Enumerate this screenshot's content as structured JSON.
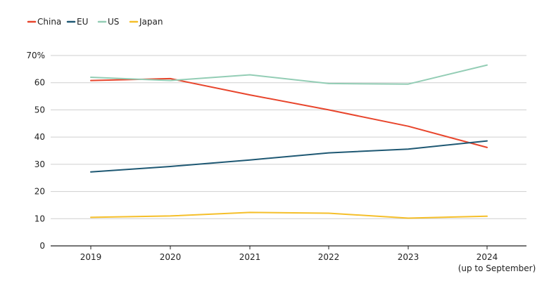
{
  "chart_data": {
    "type": "line",
    "title": "",
    "xlabel": "",
    "ylabel": "",
    "x_labels": [
      "2019",
      "2020",
      "2021",
      "2022",
      "2023",
      "2024"
    ],
    "x_sublabels": [
      "",
      "",
      "",
      "",
      "",
      "(up to September)"
    ],
    "y_ticks": [
      "0",
      "10",
      "20",
      "30",
      "40",
      "50",
      "60",
      "70%"
    ],
    "ylim": [
      0,
      70
    ],
    "grid": true,
    "legend_position": "top-left",
    "series": [
      {
        "name": "China",
        "color": "#e8452c",
        "values": [
          60.8,
          61.5,
          55.5,
          50.0,
          44.0,
          36.2
        ]
      },
      {
        "name": "EU",
        "color": "#1e5873",
        "values": [
          27.2,
          29.2,
          31.6,
          34.2,
          35.6,
          38.6
        ]
      },
      {
        "name": "US",
        "color": "#93cdb5",
        "values": [
          62.0,
          60.8,
          62.9,
          59.7,
          59.5,
          66.5
        ]
      },
      {
        "name": "Japan",
        "color": "#f5bf2a",
        "values": [
          10.5,
          11.0,
          12.3,
          12.0,
          10.2,
          10.9
        ]
      }
    ]
  }
}
